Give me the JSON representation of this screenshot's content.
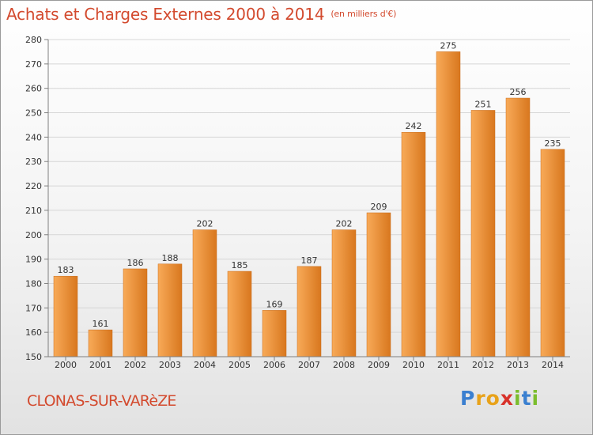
{
  "header": {
    "title": "Achats et Charges Externes 2000 à 2014",
    "subtitle": "(en milliers d'€)"
  },
  "footer": {
    "town": "CLONAS-SUR-VARèZE",
    "logo": {
      "text": "Proxiti",
      "letters": [
        "P",
        "r",
        "o",
        "x",
        "i",
        "t",
        "i"
      ],
      "colors": [
        "#3a7fd0",
        "#e8a21a",
        "#e8a21a",
        "#d8322a",
        "#7bbd2d",
        "#3a7fd0",
        "#7bbd2d"
      ]
    }
  },
  "colors": {
    "bar_light": "#f8aa58",
    "bar_dark": "#d8771e",
    "title": "#d34a2e",
    "grid": "#d6d6d6",
    "axis": "#808080"
  },
  "chart_data": {
    "type": "bar",
    "title": "Achats et Charges Externes 2000 à 2014",
    "subtitle": "(en milliers d'€)",
    "categories": [
      "2000",
      "2001",
      "2002",
      "2003",
      "2004",
      "2005",
      "2006",
      "2007",
      "2008",
      "2009",
      "2010",
      "2011",
      "2012",
      "2013",
      "2014"
    ],
    "values": [
      183,
      161,
      186,
      188,
      202,
      185,
      169,
      187,
      202,
      209,
      242,
      275,
      251,
      256,
      235
    ],
    "xlabel": "",
    "ylabel": "",
    "ylim": [
      150,
      280
    ],
    "yticks": [
      150,
      160,
      170,
      180,
      190,
      200,
      210,
      220,
      230,
      240,
      250,
      260,
      270,
      280
    ],
    "grid": true,
    "data_labels": true
  }
}
